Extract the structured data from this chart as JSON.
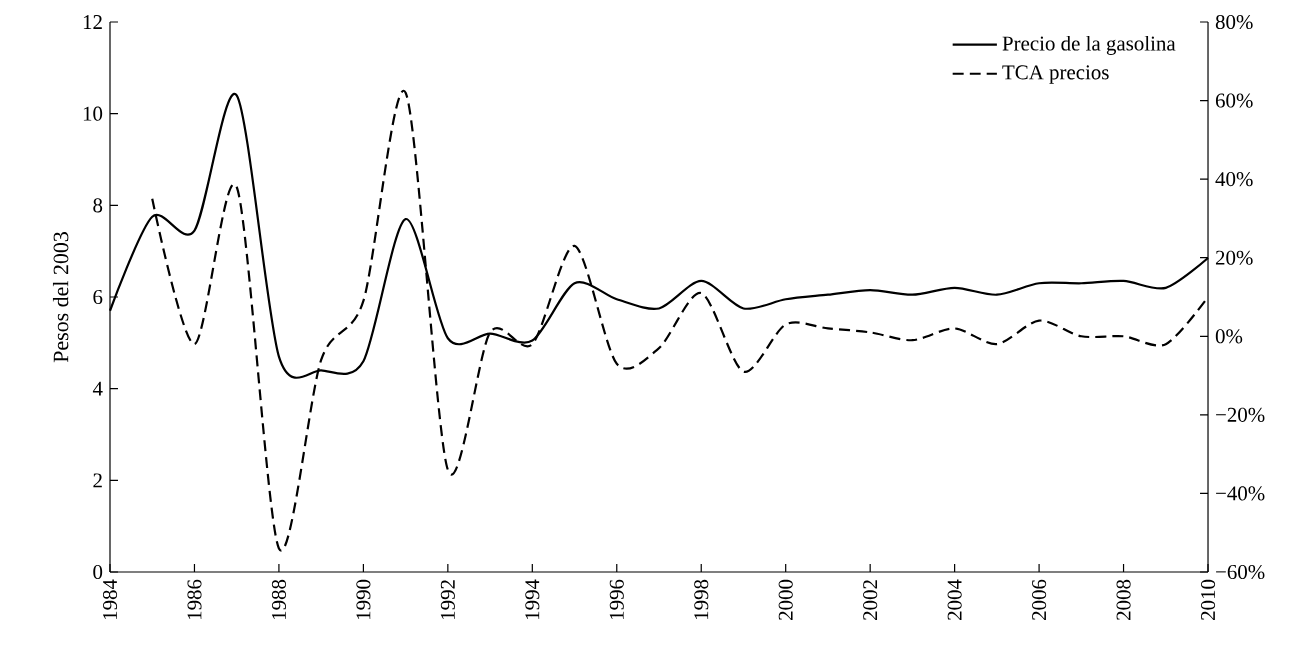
{
  "chart_data": {
    "type": "line",
    "ylabel": "Pesos del 2003",
    "xlim": [
      1984,
      2010
    ],
    "xticks": [
      1984,
      1986,
      1988,
      1990,
      1992,
      1994,
      1996,
      1998,
      2000,
      2002,
      2004,
      2006,
      2008,
      2010
    ],
    "ylim": [
      0,
      12
    ],
    "yticks": [
      0,
      2,
      4,
      6,
      8,
      10,
      12
    ],
    "y2lim": [
      -60,
      80
    ],
    "y2ticks": [
      {
        "value": -60,
        "label": "−60%"
      },
      {
        "value": -40,
        "label": "−40%"
      },
      {
        "value": -20,
        "label": "−20%"
      },
      {
        "value": 0,
        "label": "0%"
      },
      {
        "value": 20,
        "label": "20%"
      },
      {
        "value": 40,
        "label": "40%"
      },
      {
        "value": 60,
        "label": "60%"
      },
      {
        "value": 80,
        "label": "80%"
      }
    ],
    "legend": "top right",
    "grid": false,
    "marker": "none",
    "series": [
      {
        "name": "Precio de la gasolina",
        "color": "#000000",
        "line_style": "solid",
        "x": [
          1984,
          1985,
          1986,
          1987,
          1988,
          1989,
          1990,
          1991,
          1992,
          1993,
          1994,
          1995,
          1996,
          1997,
          1998,
          1999,
          2000,
          2001,
          2002,
          2003,
          2004,
          2005,
          2006,
          2007,
          2008,
          2009,
          2010
        ],
        "values": [
          5.7,
          7.75,
          7.45,
          10.4,
          4.7,
          4.4,
          4.6,
          7.7,
          5.1,
          5.2,
          5.05,
          6.3,
          5.95,
          5.75,
          6.35,
          5.75,
          5.95,
          6.05,
          6.15,
          6.05,
          6.2,
          6.05,
          6.3,
          6.3,
          6.35,
          6.2,
          6.85
        ]
      },
      {
        "name": "TCA precios",
        "color": "#000000",
        "line_style": "dashed",
        "axis": "y2",
        "x": [
          1985,
          1986,
          1987,
          1988,
          1989,
          1990,
          1991,
          1992,
          1993,
          1994,
          1995,
          1996,
          1997,
          1998,
          1999,
          2000,
          2001,
          2002,
          2003,
          2004,
          2005,
          2006,
          2007,
          2008,
          2009,
          2010
        ],
        "values": [
          35,
          -2,
          38,
          -54,
          -6,
          9,
          62,
          -34,
          1,
          -2,
          23,
          -7,
          -3,
          11,
          -9,
          3,
          2,
          1,
          -1,
          2,
          -2,
          4,
          0,
          0,
          -2,
          10
        ]
      }
    ]
  }
}
